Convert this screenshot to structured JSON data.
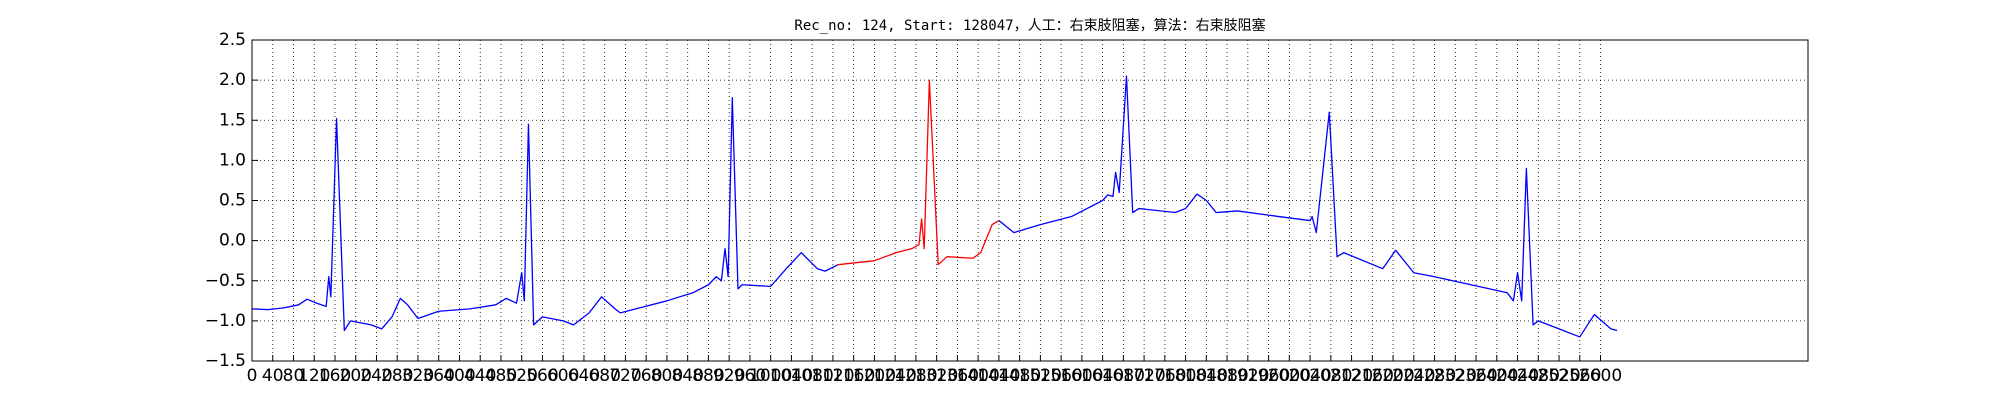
{
  "chart_data": {
    "type": "line",
    "title": "Rec_no: 124, Start: 128047，人工：右束肢阻塞，算法：右束肢阻塞",
    "xlim": [
      0,
      3000
    ],
    "ylim": [
      -1.5,
      2.5
    ],
    "xticks": [
      0,
      40,
      80,
      120,
      160,
      200,
      240,
      280,
      320,
      360,
      400,
      440,
      480,
      520,
      560,
      600,
      640,
      680,
      720,
      760,
      800,
      840,
      880,
      920,
      960,
      1000,
      1040,
      1080,
      1120,
      1160,
      1200,
      1240,
      1280,
      1320,
      1360,
      1400,
      1440,
      1480,
      1520,
      1560,
      1600,
      1640,
      1680,
      1720,
      1760,
      1800,
      1840,
      1880,
      1920,
      1960,
      2000,
      2040,
      2080,
      2120,
      2160,
      2200,
      2240,
      2280,
      2320,
      2360,
      2400,
      2440,
      2480,
      2520,
      2560,
      2600
    ],
    "yticks": [
      2.5,
      {
        "value": 2,
        "label": "2.0"
      },
      1.5,
      {
        "value": 1,
        "label": "1.0"
      },
      0.5,
      {
        "value": 0,
        "label": "0.0"
      },
      {
        "value": -0.5,
        "label": "−0.5"
      },
      {
        "value": -1,
        "label": "−1.0"
      },
      {
        "value": -1.5,
        "label": "−1.5"
      }
    ],
    "grid": true,
    "series": [
      {
        "color": "#0000ff",
        "x": [
          0,
          30,
          60,
          90,
          106,
          125,
          143,
          148,
          152,
          163,
          178,
          190,
          230,
          250,
          270,
          286,
          300,
          320,
          360,
          420,
          470,
          490,
          510,
          520,
          525,
          533,
          543,
          560,
          600,
          620,
          650,
          674,
          700,
          710,
          740,
          800,
          850,
          880,
          895,
          905,
          912,
          918,
          926,
          937,
          945,
          1000,
          1030,
          1059,
          1090,
          1105,
          1130
        ],
        "values": [
          -0.85,
          -0.86,
          -0.84,
          -0.8,
          -0.73,
          -0.78,
          -0.82,
          -0.45,
          -0.7,
          1.52,
          -1.12,
          -1.0,
          -1.05,
          -1.1,
          -0.95,
          -0.72,
          -0.8,
          -0.97,
          -0.88,
          -0.85,
          -0.8,
          -0.72,
          -0.78,
          -0.4,
          -0.75,
          1.45,
          -1.05,
          -0.95,
          -1.0,
          -1.05,
          -0.9,
          -0.7,
          -0.85,
          -0.9,
          -0.85,
          -0.75,
          -0.65,
          -0.55,
          -0.45,
          -0.5,
          -0.1,
          -0.45,
          1.78,
          -0.6,
          -0.55,
          -0.57,
          -0.35,
          -0.15,
          -0.35,
          -0.38,
          -0.3
        ]
      },
      {
        "color": "#ff0000",
        "x": [
          1130,
          1200,
          1242,
          1272,
          1286,
          1291,
          1296,
          1306,
          1323,
          1340,
          1390,
          1405,
          1427,
          1440
        ],
        "values": [
          -0.3,
          -0.25,
          -0.15,
          -0.1,
          -0.05,
          0.27,
          -0.1,
          2.0,
          -0.3,
          -0.2,
          -0.22,
          -0.15,
          0.2,
          0.25
        ]
      },
      {
        "color": "#0000ff",
        "x": [
          1440,
          1469,
          1520,
          1580,
          1640,
          1650,
          1660,
          1665,
          1672,
          1686,
          1698,
          1710,
          1780,
          1800,
          1822,
          1840,
          1859,
          1900,
          1980,
          2040,
          2044,
          2052,
          2077,
          2092,
          2105,
          2180,
          2205,
          2240,
          2280,
          2350,
          2420,
          2432,
          2440,
          2448,
          2457,
          2470,
          2480,
          2520,
          2560,
          2588,
          2620,
          2632
        ],
        "values": [
          0.25,
          0.1,
          0.2,
          0.3,
          0.5,
          0.57,
          0.55,
          0.85,
          0.6,
          2.05,
          0.35,
          0.4,
          0.35,
          0.4,
          0.58,
          0.5,
          0.35,
          0.37,
          0.3,
          0.25,
          0.3,
          0.1,
          1.6,
          -0.2,
          -0.15,
          -0.35,
          -0.12,
          -0.4,
          -0.45,
          -0.55,
          -0.65,
          -0.75,
          -0.4,
          -0.75,
          0.9,
          -1.05,
          -1.0,
          -1.1,
          -1.2,
          -0.92,
          -1.1,
          -1.12
        ]
      }
    ]
  }
}
